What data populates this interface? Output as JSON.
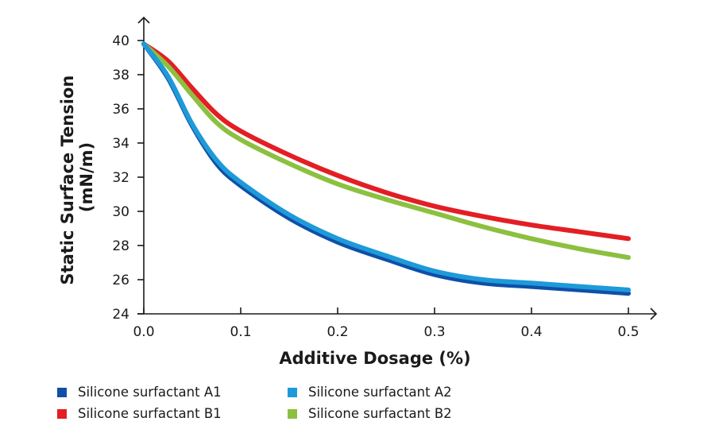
{
  "chart_data": {
    "type": "line",
    "title": "",
    "xlabel": "Additive Dosage (%)",
    "ylabel_lines": [
      "Static Surface Tension",
      "(mN/m)"
    ],
    "xlim": [
      0.0,
      0.5
    ],
    "ylim": [
      24,
      40
    ],
    "xticks": [
      "0.0",
      "0.1",
      "0.2",
      "0.3",
      "0.4",
      "0.5"
    ],
    "xtick_values": [
      0.0,
      0.1,
      0.2,
      0.3,
      0.4,
      0.5
    ],
    "yticks": [
      "24",
      "26",
      "28",
      "30",
      "32",
      "34",
      "36",
      "38",
      "40"
    ],
    "ytick_values": [
      24,
      26,
      28,
      30,
      32,
      34,
      36,
      38,
      40
    ],
    "grid": false,
    "legend_position": "bottom-left",
    "x": [
      0.0,
      0.025,
      0.05,
      0.075,
      0.1,
      0.15,
      0.2,
      0.25,
      0.3,
      0.35,
      0.4,
      0.45,
      0.5
    ],
    "series": [
      {
        "name": "Silicone surfactant A1",
        "color": "#0f4fa8",
        "values": [
          39.8,
          37.8,
          35.0,
          32.8,
          31.5,
          29.6,
          28.2,
          27.2,
          26.3,
          25.8,
          25.6,
          25.4,
          25.2
        ]
      },
      {
        "name": "Silicone surfactant A2",
        "color": "#1e9ad9",
        "values": [
          39.8,
          37.9,
          35.1,
          33.0,
          31.7,
          29.8,
          28.4,
          27.4,
          26.5,
          26.0,
          25.8,
          25.6,
          25.4
        ]
      },
      {
        "name": "Silicone surfactant B1",
        "color": "#e31e24",
        "values": [
          39.8,
          38.8,
          37.2,
          35.7,
          34.7,
          33.3,
          32.1,
          31.1,
          30.3,
          29.7,
          29.2,
          28.8,
          28.4
        ]
      },
      {
        "name": "Silicone surfactant B2",
        "color": "#8cc03f",
        "values": [
          39.8,
          38.5,
          36.8,
          35.2,
          34.2,
          32.8,
          31.6,
          30.7,
          29.9,
          29.1,
          28.4,
          27.8,
          27.3
        ]
      }
    ],
    "legend_order": [
      0,
      1,
      2,
      3
    ]
  }
}
